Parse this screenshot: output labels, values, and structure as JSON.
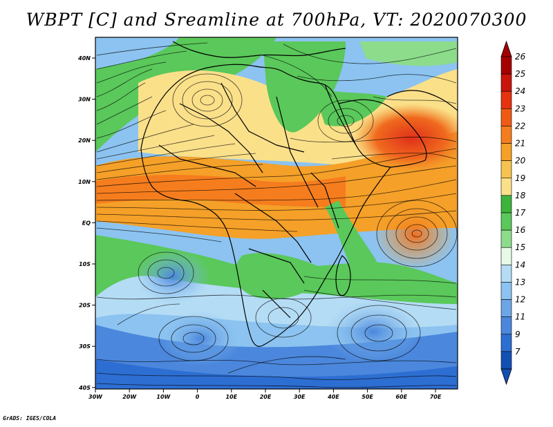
{
  "title": "WBPT [C] and Sreamline at 700hPa, VT: 2020070300",
  "credit": "GrADS: IGES/COLA",
  "lat_ticks": [
    "40N",
    "30N",
    "20N",
    "10N",
    "EQ",
    "10S",
    "20S",
    "30S",
    "40S"
  ],
  "lon_ticks": [
    "30W",
    "20W",
    "10W",
    "0",
    "10E",
    "20E",
    "30E",
    "40E",
    "50E",
    "60E",
    "70E"
  ],
  "colorbar": {
    "labels": [
      "26",
      "25",
      "24",
      "23",
      "22",
      "21",
      "20",
      "19",
      "18",
      "17",
      "16",
      "15",
      "14",
      "13",
      "12",
      "11",
      "9",
      "7"
    ],
    "colors": [
      "#a50000",
      "#c8140a",
      "#e6320f",
      "#f05a14",
      "#f57d1e",
      "#f5a028",
      "#f7c350",
      "#fbe08a",
      "#3cb43c",
      "#5ac85a",
      "#8cdc8c",
      "#e6fae6",
      "#b4dcf5",
      "#8cc3f0",
      "#6ea5e6",
      "#4b87dc",
      "#2d6ed2",
      "#1450b4"
    ]
  }
}
